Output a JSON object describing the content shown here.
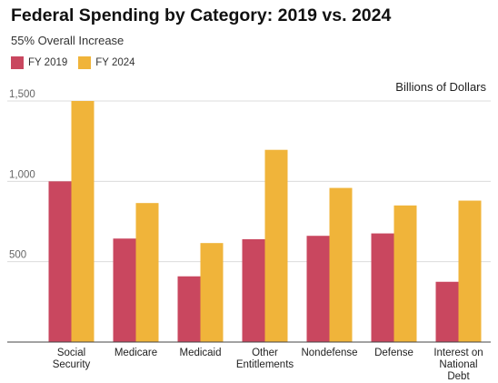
{
  "chart_data": {
    "type": "bar",
    "title": "Federal Spending by Category: 2019 vs. 2024",
    "subtitle": "55% Overall Increase",
    "unit_label": "Billions of Dollars",
    "categories": [
      [
        "Social",
        "Security"
      ],
      [
        "Medicare"
      ],
      [
        "Medicaid"
      ],
      [
        "Other",
        "Entitlements"
      ],
      [
        "Nondefense"
      ],
      [
        "Defense"
      ],
      [
        "Interest on",
        "National",
        "Debt"
      ]
    ],
    "series": [
      {
        "name": "FY 2019",
        "color": "#c9475f",
        "values": [
          1000,
          644,
          409,
          640,
          661,
          676,
          375
        ]
      },
      {
        "name": "FY 2024",
        "color": "#f0b43a",
        "values": [
          1500,
          865,
          616,
          1196,
          959,
          850,
          880
        ]
      }
    ],
    "yticks": [
      500,
      1000,
      1500
    ],
    "ytick_labels": [
      "500",
      "1,000",
      "1,500"
    ],
    "ylim": [
      0,
      1500
    ],
    "grid": true,
    "legend_position": "top-left"
  }
}
